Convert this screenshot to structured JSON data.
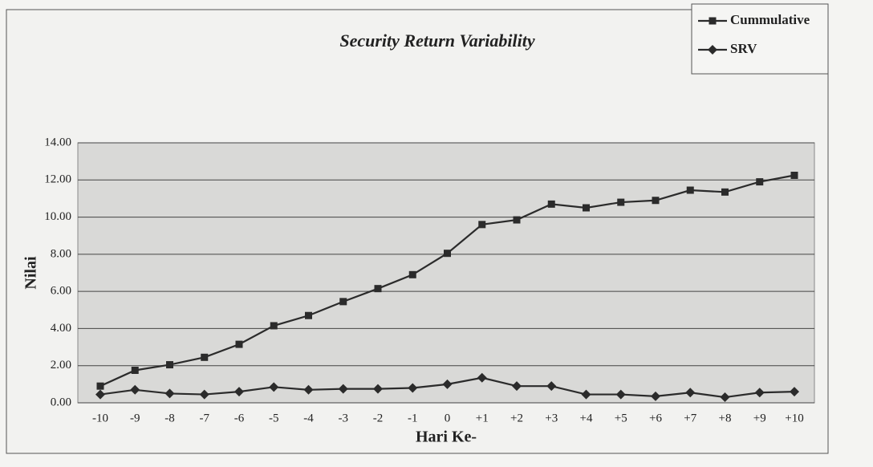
{
  "chart_data": {
    "type": "line",
    "title": "Security Return Variability",
    "x_label": "Hari Ke-",
    "y_label": "Nilai",
    "categories": [
      "-10",
      "-9",
      "-8",
      "-7",
      "-6",
      "-5",
      "-4",
      "-3",
      "-2",
      "-1",
      "0",
      "+1",
      "+2",
      "+3",
      "+4",
      "+5",
      "+6",
      "+7",
      "+8",
      "+9",
      "+10"
    ],
    "series": [
      {
        "name": "Cummulative",
        "color": "#2b2b2b",
        "marker": "square",
        "values": [
          0.9,
          1.75,
          2.05,
          2.45,
          3.15,
          4.15,
          4.7,
          5.45,
          6.15,
          6.9,
          8.05,
          9.6,
          9.85,
          10.7,
          10.5,
          10.8,
          10.9,
          11.45,
          11.35,
          11.9,
          12.25
        ]
      },
      {
        "name": "SRV",
        "color": "#2b2b2b",
        "marker": "diamond",
        "values": [
          0.45,
          0.7,
          0.5,
          0.45,
          0.6,
          0.85,
          0.7,
          0.75,
          0.75,
          0.8,
          1.0,
          1.35,
          0.9,
          0.9,
          0.45,
          0.45,
          0.35,
          0.55,
          0.3,
          0.55,
          0.6
        ]
      }
    ],
    "ylim": [
      0,
      14
    ],
    "yticks": [
      {
        "value": 0,
        "label": "0.00"
      },
      {
        "value": 2,
        "label": "2.00"
      },
      {
        "value": 4,
        "label": "4.00"
      },
      {
        "value": 6,
        "label": "6.00"
      },
      {
        "value": 8,
        "label": "8.00"
      },
      {
        "value": 10,
        "label": "10.00"
      },
      {
        "value": 12,
        "label": "12.00"
      },
      {
        "value": 14,
        "label": "14.00"
      }
    ],
    "grid": true,
    "legend": "top-right"
  }
}
